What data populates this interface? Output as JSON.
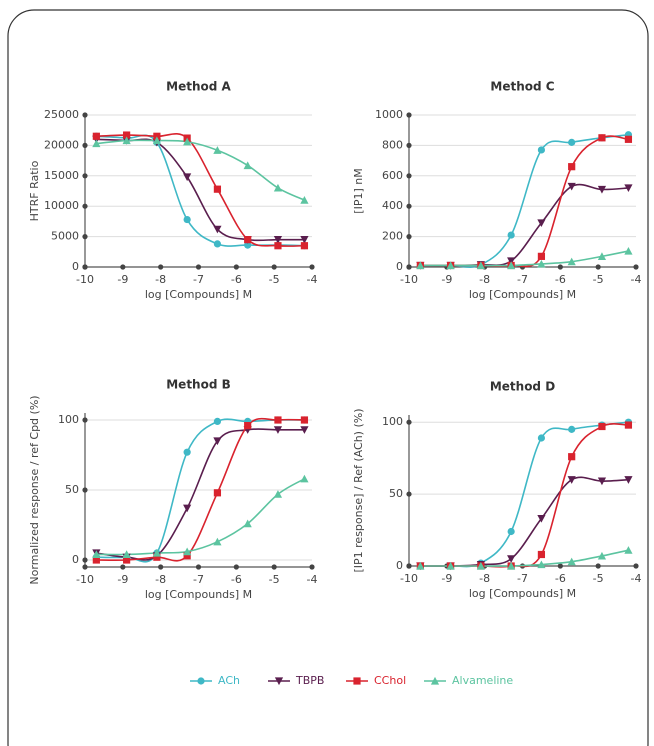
{
  "chart_data": [
    {
      "type": "line",
      "title": "Method A",
      "x_label": "log [Compounds] M",
      "y_label": "HTRF Ratio",
      "x": [
        -9.7,
        -8.9,
        -8.1,
        -7.3,
        -6.5,
        -5.7,
        -4.9,
        -4.2
      ],
      "xlim": [
        -10,
        -4
      ],
      "xticks": [
        -10,
        -9,
        -8,
        -7,
        -6,
        -5,
        -4
      ],
      "ylim": [
        0,
        25000
      ],
      "yticks": [
        0,
        5000,
        10000,
        15000,
        20000,
        25000
      ],
      "grid": true,
      "series": [
        {
          "values": [
            21500,
            21200,
            20500,
            7800,
            3800,
            3600,
            3600,
            3500
          ]
        },
        {
          "values": [
            21000,
            20800,
            20500,
            14800,
            6200,
            4500,
            4500,
            4500
          ]
        },
        {
          "values": [
            21500,
            21700,
            21500,
            21200,
            12800,
            4500,
            3500,
            3500
          ]
        },
        {
          "values": [
            20300,
            20800,
            20800,
            20600,
            19200,
            16700,
            13000,
            11000
          ]
        }
      ]
    },
    {
      "type": "line",
      "title": "Method C",
      "x_label": "log [Compounds] M",
      "y_label": "[IP1] nM",
      "x": [
        -9.7,
        -8.9,
        -8.1,
        -7.3,
        -6.5,
        -5.7,
        -4.9,
        -4.2
      ],
      "xlim": [
        -10,
        -4
      ],
      "xticks": [
        -10,
        -9,
        -8,
        -7,
        -6,
        -5,
        -4
      ],
      "ylim": [
        0,
        1000
      ],
      "yticks": [
        0,
        200,
        400,
        600,
        800,
        1000
      ],
      "grid": true,
      "series": [
        {
          "values": [
            10,
            10,
            15,
            210,
            770,
            820,
            850,
            870
          ]
        },
        {
          "values": [
            10,
            10,
            15,
            40,
            290,
            530,
            510,
            520
          ]
        },
        {
          "values": [
            10,
            10,
            10,
            10,
            70,
            660,
            850,
            840
          ]
        },
        {
          "values": [
            10,
            10,
            10,
            10,
            20,
            35,
            70,
            105
          ]
        }
      ]
    },
    {
      "type": "line",
      "title": "Method B",
      "x_label": "log [Compounds] M",
      "y_label": "Normalized response / ref Cpd (%)",
      "x": [
        -9.7,
        -8.9,
        -8.1,
        -7.3,
        -6.5,
        -5.7,
        -4.9,
        -4.2
      ],
      "xlim": [
        -10,
        -4
      ],
      "xticks": [
        -10,
        -9,
        -8,
        -7,
        -6,
        -5,
        -4
      ],
      "ylim": [
        -5,
        105
      ],
      "yticks": [
        0,
        50,
        100
      ],
      "grid": true,
      "series": [
        {
          "values": [
            2,
            2,
            5,
            77,
            99,
            99,
            100,
            100
          ]
        },
        {
          "values": [
            5,
            2,
            3,
            37,
            85,
            93,
            93,
            93
          ]
        },
        {
          "values": [
            0,
            0,
            2,
            3,
            48,
            96,
            100,
            100
          ]
        },
        {
          "values": [
            4,
            4,
            5,
            6,
            13,
            26,
            47,
            58
          ]
        }
      ]
    },
    {
      "type": "line",
      "title": "Method D",
      "x_label": "log [Compounds] M",
      "y_label": "[IP1 response] / Ref (ACh) (%)",
      "x": [
        -9.7,
        -8.9,
        -8.1,
        -7.3,
        -6.5,
        -5.7,
        -4.9,
        -4.2
      ],
      "xlim": [
        -10,
        -4
      ],
      "xticks": [
        -10,
        -9,
        -8,
        -7,
        -6,
        -5,
        -4
      ],
      "ylim": [
        0,
        105
      ],
      "yticks": [
        0,
        50,
        100
      ],
      "grid": true,
      "series": [
        {
          "values": [
            0,
            0,
            2,
            24,
            89,
            95,
            98,
            100
          ]
        },
        {
          "values": [
            0,
            0,
            1,
            5,
            33,
            60,
            59,
            60
          ]
        },
        {
          "values": [
            0,
            0,
            0,
            0,
            8,
            76,
            97,
            98
          ]
        },
        {
          "values": [
            0,
            0,
            0,
            0,
            1,
            3,
            7,
            11
          ]
        }
      ]
    }
  ],
  "legend": {
    "position": "bottom",
    "items": [
      {
        "name": "ACh",
        "color": "#3fb8c6",
        "marker": "circle"
      },
      {
        "name": "TBPB",
        "color": "#5a1e4e",
        "marker": "triangle-down"
      },
      {
        "name": "CChol",
        "color": "#d9232e",
        "marker": "square"
      },
      {
        "name": "Alvameline",
        "color": "#5cc4a0",
        "marker": "triangle-up"
      }
    ]
  }
}
